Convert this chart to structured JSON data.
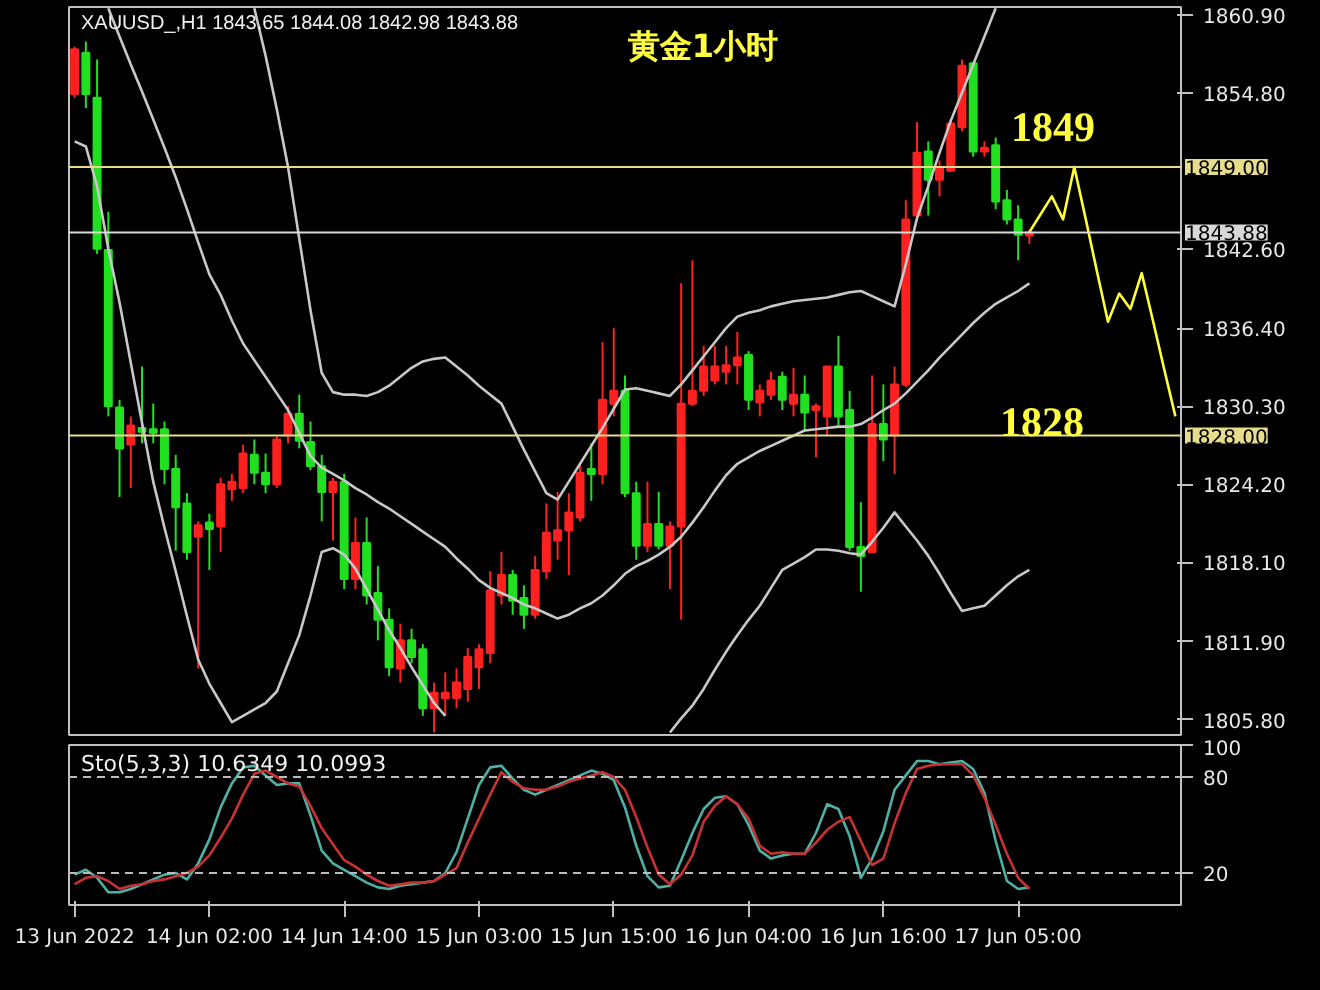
{
  "chart_data": [
    {
      "type": "candlestick",
      "title": "黄金1小时",
      "subtitle": "XAUUSD_,H1  1843.65 1844.08 1842.98 1843.88",
      "ohlc": [
        [
          1854.7,
          1858.4,
          1854.4,
          1858.2
        ],
        [
          1857.9,
          1858.8,
          1853.6,
          1854.7
        ],
        [
          1854.4,
          1857.4,
          1842.2,
          1842.6
        ],
        [
          1842.5,
          1845.5,
          1829.5,
          1830.3
        ],
        [
          1830.2,
          1830.8,
          1823.2,
          1827.0
        ],
        [
          1827.3,
          1829.5,
          1823.9,
          1828.8
        ],
        [
          1828.6,
          1833.4,
          1827.4,
          1828.3
        ],
        [
          1828.5,
          1830.5,
          1827.4,
          1828.2
        ],
        [
          1828.5,
          1829.1,
          1824.2,
          1825.4
        ],
        [
          1825.4,
          1826.5,
          1819.0,
          1822.4
        ],
        [
          1822.7,
          1823.5,
          1818.3,
          1818.9
        ],
        [
          1820.1,
          1821.3,
          1809.8,
          1821.0
        ],
        [
          1821.2,
          1821.9,
          1817.5,
          1820.7
        ],
        [
          1820.9,
          1824.7,
          1818.9,
          1824.2
        ],
        [
          1823.8,
          1825.0,
          1822.9,
          1824.4
        ],
        [
          1823.9,
          1827.3,
          1823.5,
          1826.6
        ],
        [
          1826.5,
          1827.7,
          1824.2,
          1825.1
        ],
        [
          1825.1,
          1826.6,
          1823.5,
          1824.2
        ],
        [
          1824.2,
          1828.0,
          1823.9,
          1827.7
        ],
        [
          1828.0,
          1830.3,
          1827.4,
          1829.7
        ],
        [
          1829.7,
          1831.2,
          1827.0,
          1827.6
        ],
        [
          1827.5,
          1829.1,
          1825.3,
          1825.6
        ],
        [
          1825.6,
          1826.5,
          1821.3,
          1823.6
        ],
        [
          1823.6,
          1824.7,
          1819.8,
          1824.4
        ],
        [
          1824.4,
          1825.0,
          1816.0,
          1816.8
        ],
        [
          1816.8,
          1821.6,
          1816.0,
          1819.6
        ],
        [
          1819.6,
          1821.6,
          1814.8,
          1815.5
        ],
        [
          1815.7,
          1817.8,
          1812.0,
          1813.6
        ],
        [
          1813.6,
          1814.5,
          1809.2,
          1809.9
        ],
        [
          1809.8,
          1813.3,
          1808.7,
          1812.0
        ],
        [
          1812.0,
          1812.9,
          1810.2,
          1810.7
        ],
        [
          1811.3,
          1811.7,
          1806.1,
          1806.7
        ],
        [
          1806.7,
          1808.7,
          1804.8,
          1807.9
        ],
        [
          1807.5,
          1809.5,
          1806.1,
          1807.9
        ],
        [
          1807.5,
          1809.8,
          1806.7,
          1808.7
        ],
        [
          1808.2,
          1811.4,
          1807.2,
          1810.7
        ],
        [
          1809.9,
          1811.7,
          1808.2,
          1811.3
        ],
        [
          1811.0,
          1817.4,
          1810.2,
          1815.9
        ],
        [
          1815.5,
          1818.9,
          1814.8,
          1817.1
        ],
        [
          1817.1,
          1817.5,
          1814.0,
          1815.1
        ],
        [
          1815.3,
          1816.3,
          1812.9,
          1814.0
        ],
        [
          1814.0,
          1818.6,
          1813.7,
          1817.5
        ],
        [
          1817.4,
          1822.7,
          1816.8,
          1820.4
        ],
        [
          1819.8,
          1823.6,
          1818.3,
          1820.6
        ],
        [
          1820.6,
          1823.5,
          1817.1,
          1822.0
        ],
        [
          1821.6,
          1825.7,
          1821.3,
          1825.1
        ],
        [
          1825.4,
          1827.4,
          1822.9,
          1825.0
        ],
        [
          1825.0,
          1835.3,
          1824.2,
          1830.8
        ],
        [
          1830.5,
          1836.4,
          1829.5,
          1831.5
        ],
        [
          1831.5,
          1832.7,
          1823.2,
          1823.5
        ],
        [
          1823.5,
          1824.4,
          1818.3,
          1819.4
        ],
        [
          1819.4,
          1824.4,
          1818.9,
          1821.1
        ],
        [
          1821.1,
          1823.6,
          1819.1,
          1819.4
        ],
        [
          1819.4,
          1821.3,
          1816.0,
          1820.9
        ],
        [
          1820.9,
          1839.9,
          1813.6,
          1830.5
        ],
        [
          1830.5,
          1841.7,
          1830.3,
          1831.5
        ],
        [
          1831.5,
          1835.0,
          1831.1,
          1833.4
        ],
        [
          1832.3,
          1835.0,
          1832.0,
          1833.4
        ],
        [
          1833.0,
          1835.0,
          1832.0,
          1833.5
        ],
        [
          1833.5,
          1836.1,
          1832.0,
          1834.1
        ],
        [
          1834.3,
          1834.6,
          1830.0,
          1830.8
        ],
        [
          1830.6,
          1832.0,
          1829.5,
          1831.5
        ],
        [
          1831.2,
          1833.0,
          1830.8,
          1832.3
        ],
        [
          1832.6,
          1833.0,
          1830.0,
          1830.8
        ],
        [
          1830.5,
          1833.3,
          1829.5,
          1831.2
        ],
        [
          1831.2,
          1832.7,
          1828.3,
          1829.8
        ],
        [
          1830.0,
          1830.5,
          1826.3,
          1830.3
        ],
        [
          1829.5,
          1833.4,
          1828.0,
          1833.4
        ],
        [
          1833.4,
          1835.8,
          1828.8,
          1829.5
        ],
        [
          1830.0,
          1831.5,
          1819.0,
          1819.3
        ],
        [
          1819.3,
          1822.8,
          1815.8,
          1818.6
        ],
        [
          1818.9,
          1832.7,
          1818.9,
          1828.9
        ],
        [
          1828.9,
          1832.0,
          1826.0,
          1827.7
        ],
        [
          1828.0,
          1833.4,
          1825.0,
          1832.0
        ],
        [
          1832.0,
          1846.4,
          1831.8,
          1844.9
        ],
        [
          1845.2,
          1852.5,
          1845.2,
          1850.1
        ],
        [
          1850.2,
          1851.0,
          1845.2,
          1848.0
        ],
        [
          1848.0,
          1849.5,
          1846.7,
          1849.0
        ],
        [
          1848.7,
          1852.8,
          1848.6,
          1852.4
        ],
        [
          1852.1,
          1857.4,
          1851.8,
          1856.9
        ],
        [
          1857.1,
          1857.1,
          1849.8,
          1850.2
        ],
        [
          1850.2,
          1851.0,
          1849.8,
          1850.5
        ],
        [
          1850.7,
          1851.3,
          1845.7,
          1846.3
        ],
        [
          1846.4,
          1847.2,
          1844.5,
          1844.9
        ],
        [
          1844.9,
          1846.0,
          1841.7,
          1843.7
        ],
        [
          1843.65,
          1844.08,
          1842.98,
          1843.88
        ],
        null,
        null,
        null,
        null,
        null,
        null,
        null,
        null,
        null,
        null,
        null,
        null,
        null
      ],
      "colors": [
        "#ff2020",
        "#20e020",
        "#20e020",
        "#20e020",
        "#20e020",
        "#ff2020",
        "#20e020",
        "#20e020",
        "#20e020",
        "#20e020",
        "#20e020",
        "#ff2020",
        "#20e020",
        "#ff2020",
        "#ff2020",
        "#ff2020",
        "#20e020",
        "#20e020",
        "#ff2020",
        "#ff2020",
        "#20e020",
        "#20e020",
        "#20e020",
        "#ff2020",
        "#20e020",
        "#ff2020",
        "#20e020",
        "#20e020",
        "#20e020",
        "#ff2020",
        "#20e020",
        "#20e020",
        "#ff2020",
        "#ff2020",
        "#ff2020",
        "#ff2020",
        "#ff2020",
        "#ff2020",
        "#ff2020",
        "#20e020",
        "#20e020",
        "#ff2020",
        "#ff2020",
        "#ff2020",
        "#ff2020",
        "#ff2020",
        "#20e020",
        "#ff2020",
        "#ff2020",
        "#20e020",
        "#20e020",
        "#ff2020",
        "#20e020",
        "#ff2020",
        "#ff2020",
        "#ff2020",
        "#ff2020",
        "#ff2020",
        "#ff2020",
        "#ff2020",
        "#20e020",
        "#ff2020",
        "#ff2020",
        "#20e020",
        "#ff2020",
        "#20e020",
        "#ff2020",
        "#ff2020",
        "#20e020",
        "#20e020",
        "#20e020",
        "#ff2020",
        "#20e020",
        "#ff2020",
        "#ff2020",
        "#ff2020",
        "#20e020",
        "#ff2020",
        "#ff2020",
        "#ff2020",
        "#20e020",
        "#ff2020",
        "#20e020",
        "#20e020",
        "#20e020",
        "#ff2020",
        null,
        null,
        null,
        null,
        null,
        null,
        null,
        null,
        null,
        null,
        null,
        null,
        null
      ],
      "series": [
        {
          "type": "line",
          "color": "#c8c8c8",
          "values": [
            null,
            null,
            null,
            null,
            null,
            null,
            null,
            null,
            null,
            null,
            null,
            null,
            null,
            null,
            null,
            null,
            1861.4,
            1857.7,
            1853.5,
            1849.0,
            1843.4,
            1837.8,
            1832.9,
            1831.4,
            1831.2,
            1831.2,
            1831.1,
            1831.4,
            1831.9,
            1832.6,
            1833.3,
            1833.8,
            1834.0,
            1834.1,
            1833.4,
            1832.7,
            1831.9,
            1831.2,
            1830.5,
            1828.7,
            1826.9,
            1825.2,
            1823.5,
            1823.0,
            1824.4,
            1825.8,
            1827.2,
            1828.6,
            1830.1,
            1831.6,
            1831.7,
            1831.5,
            1831.3,
            1831.1,
            1832.0,
            1833.1,
            1834.2,
            1835.3,
            1836.4,
            1837.3,
            1837.6,
            1837.8,
            1838.1,
            1838.3,
            1838.5,
            1838.6,
            1838.7,
            1838.8,
            1839.0,
            1839.2,
            1839.3,
            1838.9,
            1838.5,
            1838.1,
            1841.4,
            1845.0,
            1847.5,
            1850.1,
            1852.6,
            1854.8,
            1857.0,
            1859.2,
            1861.4,
            null,
            null,
            null,
            null,
            null,
            null,
            null,
            null,
            null,
            null,
            null,
            null,
            null,
            null,
            null,
            null
          ]
        },
        {
          "type": "line",
          "color": "#c8c8c8",
          "values": [
            null,
            null,
            null,
            1861.4,
            1859.2,
            1857.0,
            1854.9,
            1852.7,
            1850.5,
            1848.2,
            1845.7,
            1843.1,
            1840.6,
            1839.0,
            1837.0,
            1835.2,
            1833.9,
            1832.6,
            1831.3,
            1830.0,
            1828.2,
            1826.4,
            1825.5,
            1825.0,
            1824.5,
            1823.9,
            1823.4,
            1822.8,
            1822.3,
            1821.7,
            1821.1,
            1820.5,
            1819.9,
            1819.3,
            1818.4,
            1817.6,
            1816.7,
            1816.1,
            1815.7,
            1815.3,
            1814.8,
            1814.5,
            1814.1,
            1813.7,
            1814.0,
            1814.5,
            1814.9,
            1815.5,
            1816.3,
            1817.2,
            1817.8,
            1818.2,
            1818.7,
            1819.3,
            1820.1,
            1821.2,
            1822.4,
            1823.7,
            1824.9,
            1825.8,
            1826.3,
            1826.8,
            1827.2,
            1827.6,
            1828.0,
            1828.4,
            1828.5,
            1828.6,
            1828.7,
            1828.7,
            1828.9,
            1829.4,
            1830.0,
            1830.5,
            1831.3,
            1832.2,
            1833.1,
            1834.1,
            1835.0,
            1835.9,
            1836.8,
            1837.6,
            1838.3,
            1838.8,
            1839.3,
            1839.9,
            null,
            null,
            null,
            null,
            null,
            null,
            null,
            null,
            null,
            null,
            null,
            null,
            null
          ]
        },
        {
          "type": "line",
          "color": "#c8c8c8",
          "values": [
            1851.0,
            1850.6,
            1847.5,
            1842.6,
            1838.4,
            1833.7,
            1829.0,
            1824.4,
            1820.8,
            1817.4,
            1813.9,
            1810.5,
            1808.6,
            1807.1,
            1805.6,
            1806.1,
            1806.6,
            1807.1,
            1808.0,
            1810.2,
            1812.4,
            1815.5,
            1818.9,
            1819.2,
            1818.7,
            1817.6,
            1816.0,
            1814.4,
            1812.8,
            1811.4,
            1809.9,
            1808.5,
            1807.1,
            1806.1,
            null,
            null,
            null,
            null,
            null,
            null,
            null,
            null,
            null,
            null,
            null,
            null,
            null,
            null,
            null,
            null,
            null,
            null,
            null,
            1804.8,
            1805.9,
            1806.9,
            1808.2,
            1809.7,
            1811.1,
            1812.4,
            1813.6,
            1814.7,
            1816.1,
            1817.5,
            1818.0,
            1818.5,
            1819.1,
            1819.1,
            1819.0,
            1818.8,
            1818.7,
            1819.7,
            1820.8,
            1822.0,
            1820.9,
            1819.8,
            1818.6,
            1817.2,
            1815.7,
            1814.3,
            1814.5,
            1814.7,
            1815.5,
            1816.3,
            1817.0,
            1817.5,
            null,
            null,
            null,
            null,
            null,
            null,
            null,
            null,
            null,
            null,
            null,
            null,
            null
          ]
        },
        {
          "type": "line",
          "color": "#ffff33",
          "values": [
            null,
            null,
            null,
            null,
            null,
            null,
            null,
            null,
            null,
            null,
            null,
            null,
            null,
            null,
            null,
            null,
            null,
            null,
            null,
            null,
            null,
            null,
            null,
            null,
            null,
            null,
            null,
            null,
            null,
            null,
            null,
            null,
            null,
            null,
            null,
            null,
            null,
            null,
            null,
            null,
            null,
            null,
            null,
            null,
            null,
            null,
            null,
            null,
            null,
            null,
            null,
            null,
            null,
            null,
            null,
            null,
            null,
            null,
            null,
            null,
            null,
            null,
            null,
            null,
            null,
            null,
            null,
            null,
            null,
            null,
            null,
            null,
            null,
            null,
            null,
            null,
            null,
            null,
            null,
            null,
            null,
            null,
            null,
            null,
            null,
            1843.9,
            1845.3,
            1846.7,
            1844.9,
            1849.0,
            1845.0,
            1840.9,
            1836.9,
            1839.1,
            1837.9,
            1840.7,
            1837.0,
            1833.2,
            1829.5
          ]
        }
      ],
      "ylim": [
        1804.6,
        1861.5
      ],
      "yticks": [
        {
          "value": 1860.9,
          "label": "1860.90"
        },
        {
          "value": 1854.8,
          "label": "1854.80"
        },
        {
          "value": 1842.6,
          "label": "1842.60"
        },
        {
          "value": 1836.4,
          "label": "1836.40"
        },
        {
          "value": 1830.3,
          "label": "1830.30"
        },
        {
          "value": 1824.2,
          "label": "1824.20"
        },
        {
          "value": 1818.1,
          "label": "1818.10"
        },
        {
          "value": 1811.9,
          "label": "1811.90"
        },
        {
          "value": 1805.8,
          "label": "1805.80"
        }
      ],
      "tick_labels": "y",
      "ref_lines": [
        {
          "axis": "y",
          "value": 1849.0,
          "label": "1849.00",
          "color": "#e6dc8c"
        },
        {
          "axis": "y",
          "value": 1843.88,
          "label": "1843.88",
          "color": "#d8d8d8"
        },
        {
          "axis": "y",
          "value": 1828.0,
          "label": "1828.00",
          "color": "#e6dc8c"
        }
      ],
      "annotations": [
        "1849",
        "1828"
      ]
    },
    {
      "type": "line",
      "title": "Sto(5,3,3) 10.6349 10.0993",
      "categories": [
        "13 Jun 2022",
        null,
        null,
        null,
        null,
        null,
        null,
        null,
        null,
        null,
        null,
        null,
        "14 Jun 02:00",
        null,
        null,
        null,
        null,
        null,
        null,
        null,
        null,
        null,
        null,
        null,
        "14 Jun 14:00",
        null,
        null,
        null,
        null,
        null,
        null,
        null,
        null,
        null,
        null,
        null,
        "15 Jun 03:00",
        null,
        null,
        null,
        null,
        null,
        null,
        null,
        null,
        null,
        null,
        null,
        "15 Jun 15:00",
        null,
        null,
        null,
        null,
        null,
        null,
        null,
        null,
        null,
        null,
        null,
        "16 Jun 04:00",
        null,
        null,
        null,
        null,
        null,
        null,
        null,
        null,
        null,
        null,
        null,
        "16 Jun 16:00",
        null,
        null,
        null,
        null,
        null,
        null,
        null,
        null,
        null,
        null,
        null,
        "17 Jun 05:00",
        null,
        null,
        null,
        null,
        null,
        null,
        null,
        null,
        null,
        null,
        null,
        null,
        null,
        null
      ],
      "series": [
        {
          "color": "#4fb0a5",
          "values": [
            19,
            22,
            17,
            8,
            8,
            10,
            13,
            16,
            19,
            20,
            16,
            26,
            41,
            61,
            76,
            86,
            87,
            81,
            75,
            76,
            76,
            56,
            34,
            26,
            22,
            18,
            14,
            11,
            10,
            12,
            13,
            14,
            15,
            20,
            33,
            54,
            75,
            86,
            87,
            79,
            72,
            69,
            72,
            75,
            78,
            81,
            84,
            82,
            78,
            61,
            37,
            18,
            11,
            12,
            28,
            45,
            60,
            67,
            68,
            63,
            50,
            34,
            29,
            31,
            32,
            32,
            45,
            63,
            60,
            43,
            17,
            29,
            46,
            72,
            81,
            90,
            90,
            88,
            89,
            90,
            85,
            70,
            40,
            15,
            10,
            11,
            null,
            null,
            null,
            null,
            null,
            null,
            null,
            null,
            null,
            null,
            null,
            null,
            null
          ]
        },
        {
          "color": "#c83232",
          "values": [
            13,
            17,
            18,
            15,
            10,
            12,
            13,
            15,
            16,
            18,
            20,
            24,
            31,
            42,
            54,
            69,
            82,
            84,
            80,
            76,
            74,
            62,
            48,
            38,
            28,
            24,
            19,
            15,
            12,
            13,
            14,
            14,
            15,
            19,
            23,
            39,
            54,
            69,
            83,
            77,
            73,
            72,
            72,
            74,
            77,
            79,
            81,
            83,
            80,
            72,
            55,
            36,
            19,
            13,
            19,
            31,
            52,
            62,
            68,
            63,
            54,
            37,
            32,
            33,
            32,
            32,
            39,
            47,
            52,
            55,
            40,
            25,
            29,
            51,
            70,
            85,
            87,
            88,
            88,
            88,
            81,
            67,
            50,
            32,
            17,
            10,
            null,
            null,
            null,
            null,
            null,
            null,
            null,
            null,
            null,
            null,
            null,
            null,
            null
          ]
        }
      ],
      "ylim": [
        0,
        100
      ],
      "yticks": [
        20,
        80,
        100
      ],
      "ref_lines": [
        {
          "axis": "y",
          "value": 20,
          "color": "#bbbbbb",
          "line_style": "dashed"
        },
        {
          "axis": "y",
          "value": 80,
          "color": "#bbbbbb",
          "line_style": "dashed"
        }
      ]
    }
  ]
}
